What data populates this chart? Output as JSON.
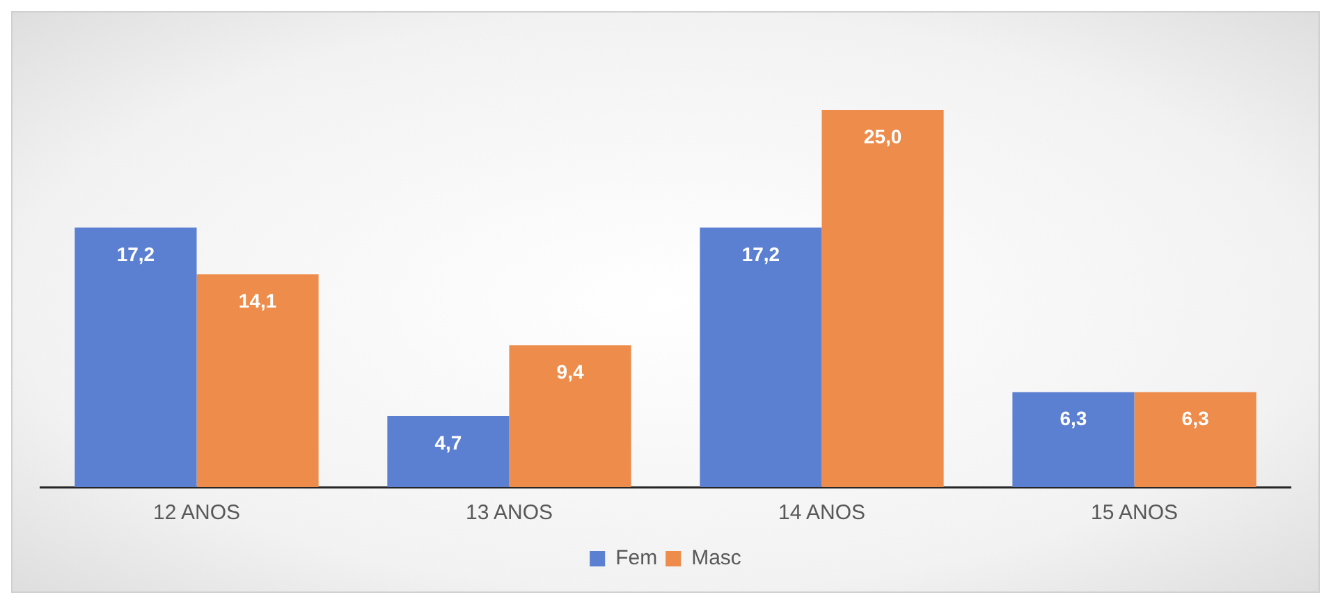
{
  "chart_data": {
    "type": "bar",
    "categories": [
      "12 ANOS",
      "13 ANOS",
      "14 ANOS",
      "15 ANOS"
    ],
    "series": [
      {
        "name": "Fem",
        "color": "#5b7fd1",
        "values": [
          17.2,
          4.7,
          17.2,
          6.3
        ],
        "value_labels": [
          "17,2",
          "4,7",
          "17,2",
          "6,3"
        ]
      },
      {
        "name": "Masc",
        "color": "#ee8c4b",
        "values": [
          14.1,
          9.4,
          25.0,
          6.3
        ],
        "value_labels": [
          "14,1",
          "9,4",
          "25,0",
          "6,3"
        ]
      }
    ],
    "legend": "bottom",
    "grid": false
  }
}
